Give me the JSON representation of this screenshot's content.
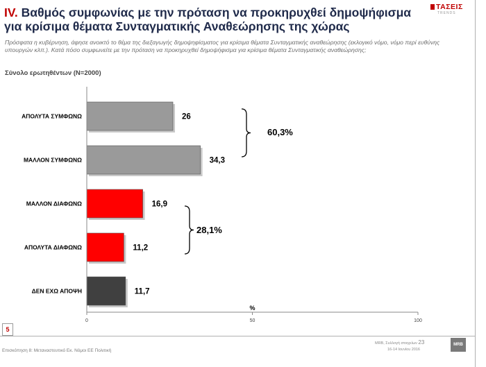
{
  "header": {
    "title_number": "IV.",
    "title_text": "Βαθμός συμφωνίας με την πρόταση να προκηρυχθεί δημοψήφισμα για κρίσιμα θέματα Συνταγματικής Αναθεώρησης της χώρας",
    "intro": "Πρόσφατα η κυβέρνηση, άφησε ανοικτό το θέμα της διεξαγωγής δημοψηφίσματος για κρίσιμα θέματα Συνταγματικής αναθεώρησης (εκλογικό νόμο, νόμο περί ευθύνης υπουργών κλπ.). Κατά πόσο συμφωνείτε με την πρόταση να προκηρυχθεί δημοψήφισμα για κρίσιμα θέματα Συνταγματικής αναθεώρησης;",
    "base": "Σύνολο ερωτηθέντων (N=2000)"
  },
  "logo": {
    "name": "ΤΑΣΕΙΣ",
    "sub": "TRENDS"
  },
  "colors": {
    "gray": "#9a9a9a",
    "red": "#ff0000",
    "dark": "#404040",
    "title": "#1f2a4a",
    "accent": "#c00000"
  },
  "chart_data": {
    "type": "bar",
    "orientation": "horizontal",
    "categories": [
      "ΑΠΟΛΥΤΑ ΣΥΜΦΩΝΩ",
      "ΜΑΛΛΟΝ ΣΥΜΦΩΝΩ",
      "ΜΑΛΛΟΝ ΔΙΑΦΩΝΩ",
      "ΑΠΟΛΥΤΑ ΔΙΑΦΩΝΩ",
      "ΔΕΝ ΕΧΩ ΑΠΟΨΗ"
    ],
    "values": [
      26,
      34.3,
      16.9,
      11.2,
      11.7
    ],
    "value_labels": [
      "26",
      "34,3",
      "16,9",
      "11,2",
      "11,7"
    ],
    "bar_colors": [
      "#9a9a9a",
      "#9a9a9a",
      "#ff0000",
      "#ff0000",
      "#404040"
    ],
    "xlim": [
      0,
      100
    ],
    "x_ticks": [
      "0",
      "50",
      "100"
    ],
    "x_unit": "%",
    "annotations": [
      {
        "label": "60,3%",
        "categories": [
          0,
          1
        ]
      },
      {
        "label": "28,1%",
        "categories": [
          2,
          3
        ]
      }
    ]
  },
  "footer": {
    "page_box": "5",
    "left": "Επισκόπηση 8: Μεταναστευτικό Εκ. Νόμοι ΕΕ Πολιτική",
    "right_line1": "MRB, Συλλογή στοιχείων",
    "page_number": "23",
    "right_line2": "16-14 Ιουνίου 2016",
    "mrb_logo": "MRB"
  }
}
